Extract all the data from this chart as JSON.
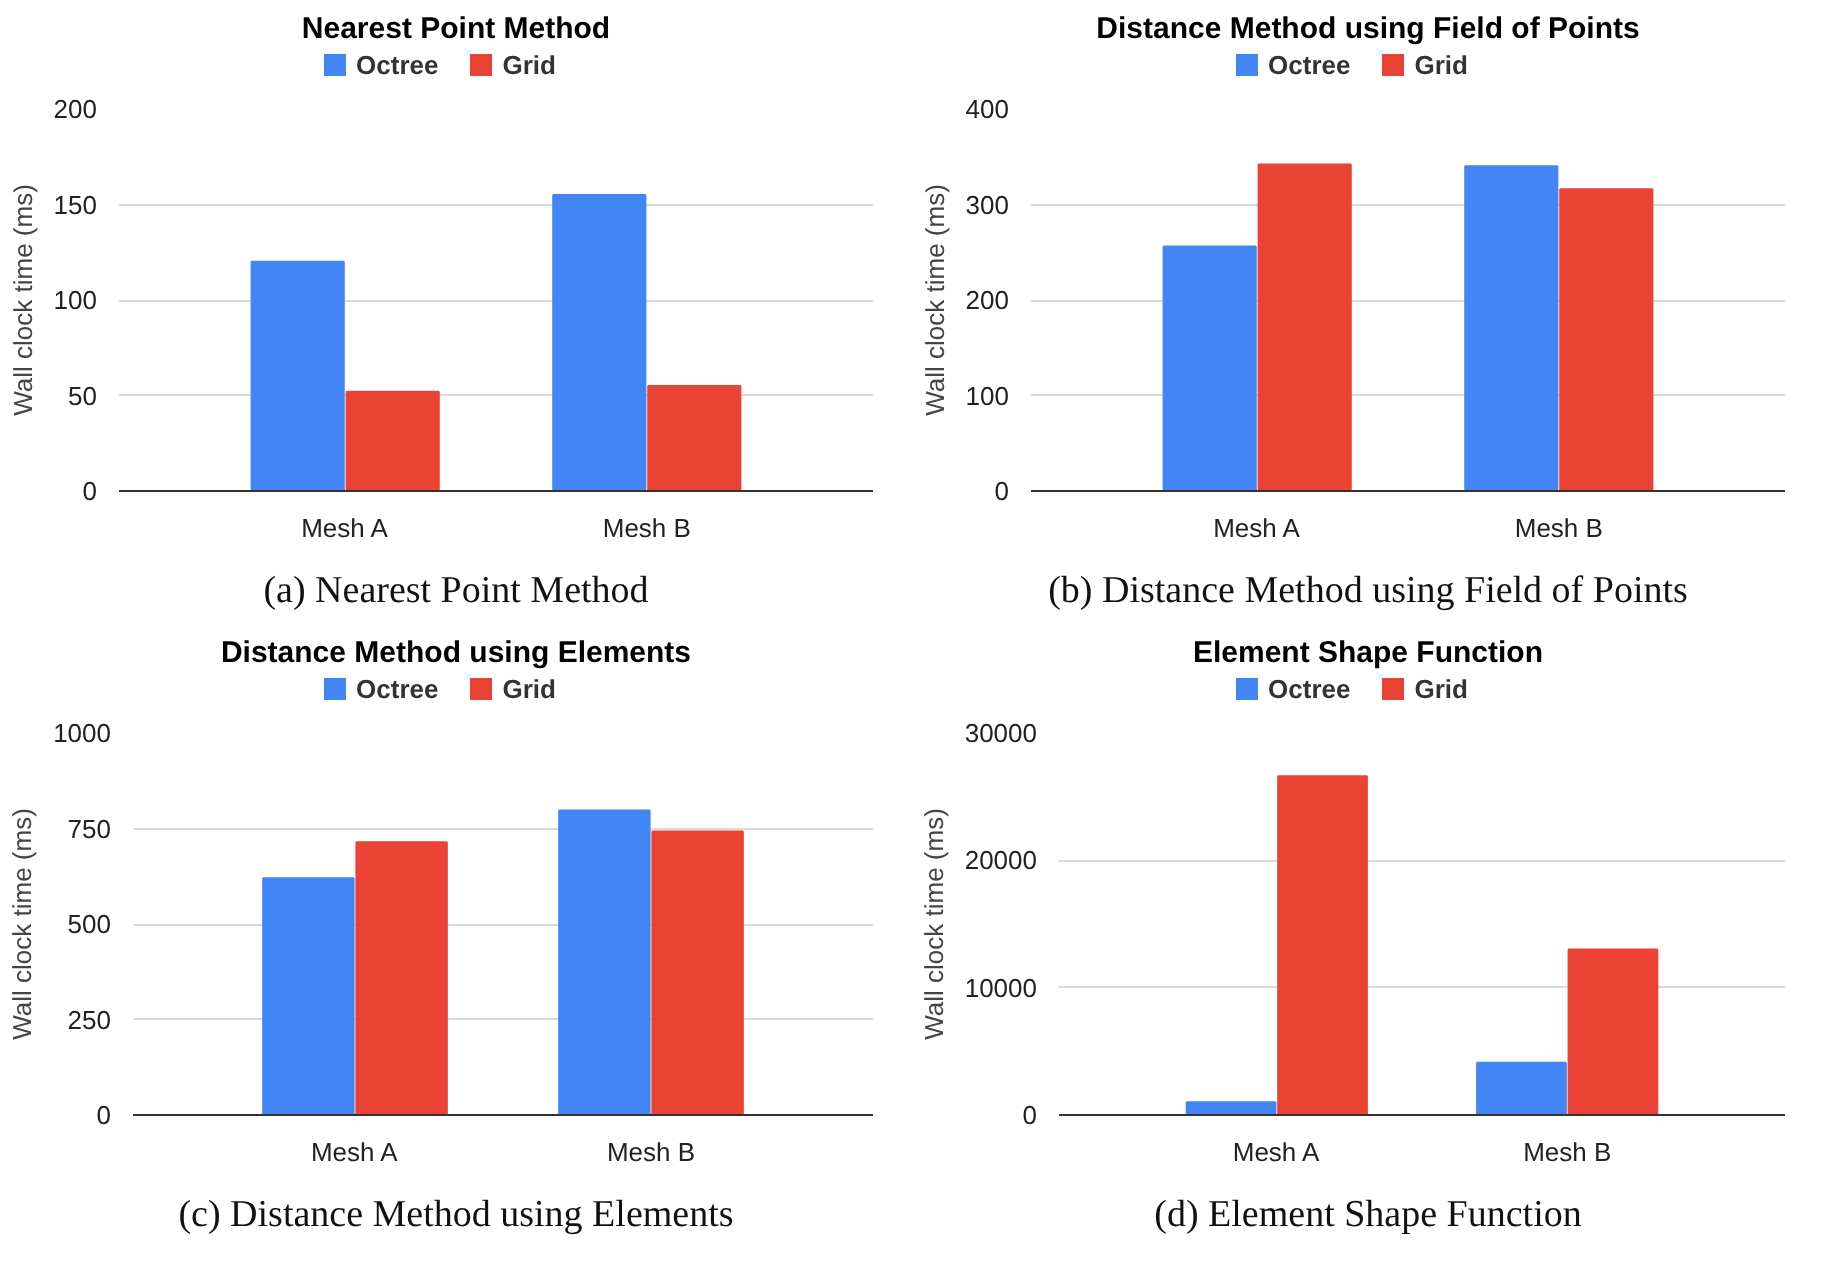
{
  "chart_data": [
    {
      "type": "bar",
      "title": "Nearest Point Method",
      "ylabel": "Wall clock time (ms)",
      "categories": [
        "Mesh A",
        "Mesh B"
      ],
      "ylim": [
        0,
        200
      ],
      "yticks": [
        0,
        50,
        100,
        150,
        200
      ],
      "grid": "y",
      "legend": "top",
      "annotations": [
        "(a) Nearest Point Method"
      ],
      "series": [
        {
          "name": "Octree",
          "color": "#4285f4",
          "values": [
            120,
            155
          ]
        },
        {
          "name": "Grid",
          "color": "#ea4335",
          "values": [
            52,
            55
          ]
        }
      ]
    },
    {
      "type": "bar",
      "title": "Distance Method using Field of Points",
      "ylabel": "Wall clock time (ms)",
      "categories": [
        "Mesh A",
        "Mesh B"
      ],
      "ylim": [
        0,
        400
      ],
      "yticks": [
        0,
        100,
        200,
        300,
        400
      ],
      "grid": "y",
      "legend": "top",
      "annotations": [
        "(b) Distance Method using Field of Points"
      ],
      "series": [
        {
          "name": "Octree",
          "color": "#4285f4",
          "values": [
            256,
            340
          ]
        },
        {
          "name": "Grid",
          "color": "#ea4335",
          "values": [
            342,
            316
          ]
        }
      ]
    },
    {
      "type": "bar",
      "title": "Distance Method using Elements",
      "ylabel": "Wall clock time (ms)",
      "categories": [
        "Mesh A",
        "Mesh B"
      ],
      "ylim": [
        0,
        1000
      ],
      "yticks": [
        0,
        250,
        500,
        750,
        1000
      ],
      "grid": "y",
      "legend": "top",
      "annotations": [
        "(c) Distance Method using Elements"
      ],
      "series": [
        {
          "name": "Octree",
          "color": "#4285f4",
          "values": [
            620,
            797
          ]
        },
        {
          "name": "Grid",
          "color": "#ea4335",
          "values": [
            714,
            742
          ]
        }
      ]
    },
    {
      "type": "bar",
      "title": "Element Shape Function",
      "ylabel": "Wall clock time (ms)",
      "categories": [
        "Mesh A",
        "Mesh B"
      ],
      "ylim": [
        0,
        30000
      ],
      "yticks": [
        0,
        10000,
        20000,
        30000
      ],
      "grid": "y",
      "legend": "top",
      "annotations": [
        "(d) Element Shape Function"
      ],
      "series": [
        {
          "name": "Octree",
          "color": "#4285f4",
          "values": [
            1000,
            4100
          ]
        },
        {
          "name": "Grid",
          "color": "#ea4335",
          "values": [
            26600,
            13000
          ]
        }
      ]
    }
  ]
}
